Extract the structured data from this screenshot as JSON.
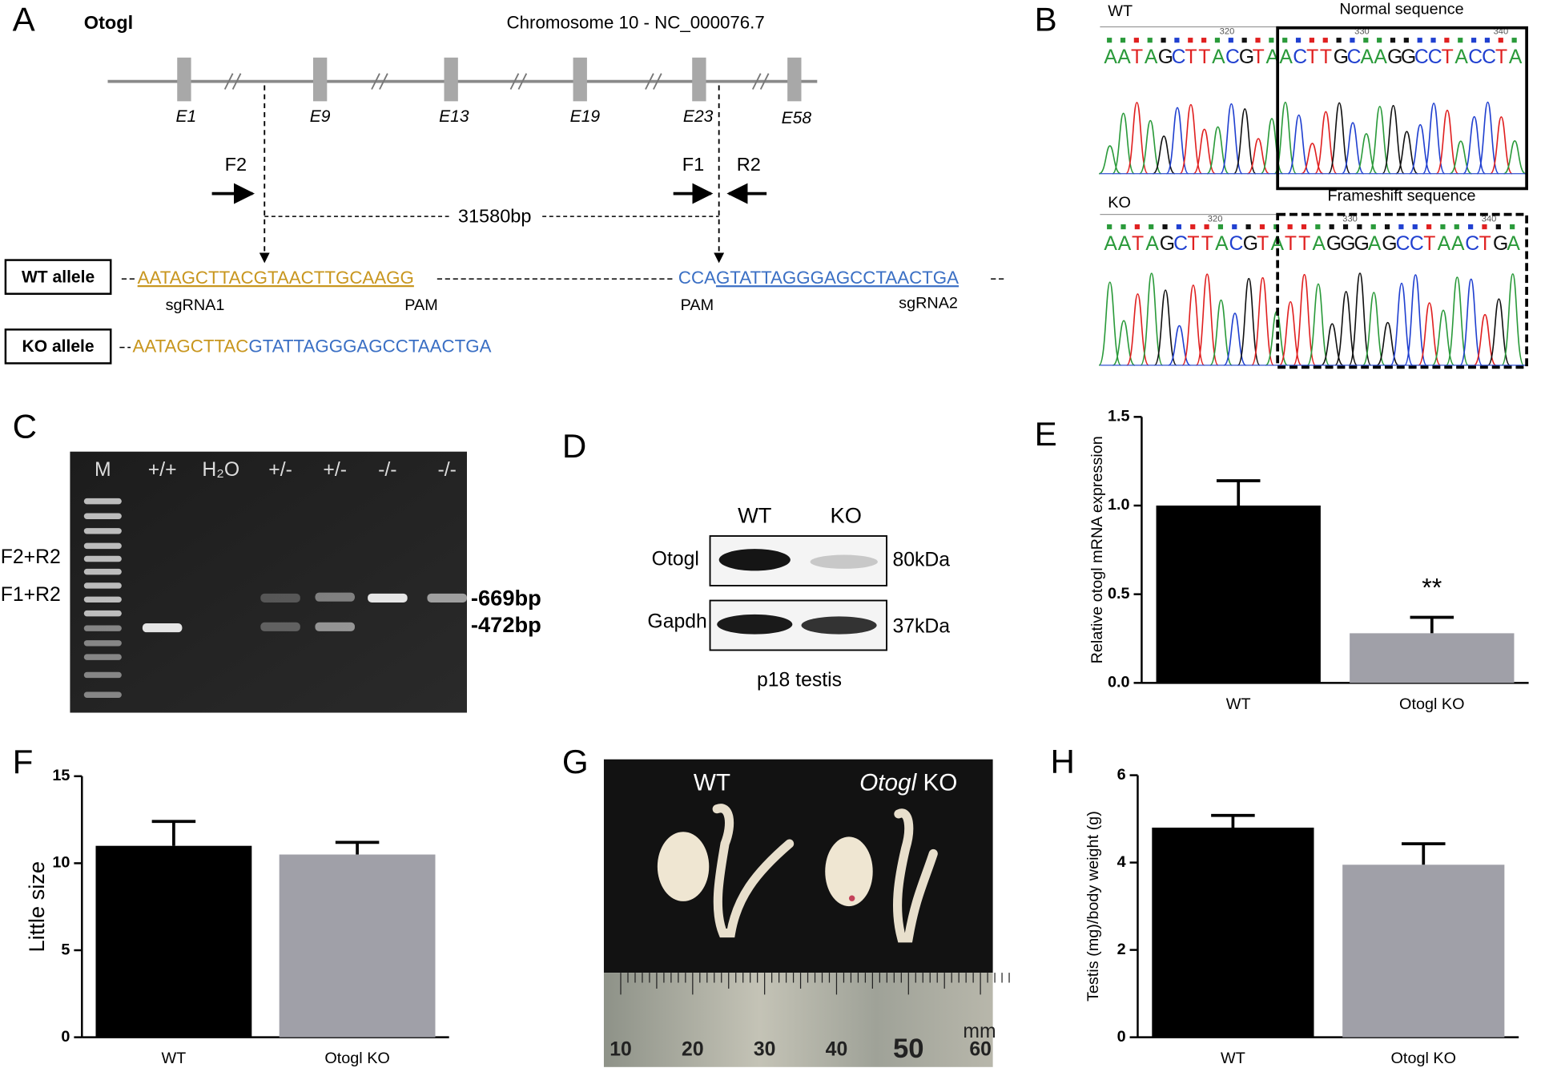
{
  "panel_labels": [
    "A",
    "B",
    "C",
    "D",
    "E",
    "F",
    "G",
    "H"
  ],
  "gene": {
    "name": "Otogl",
    "chromosome": "Chromosome 10 - NC_000076.7",
    "exons": [
      "E1",
      "E9",
      "E13",
      "E19",
      "E23",
      "E58"
    ],
    "primers": [
      "F2",
      "F1",
      "R2"
    ],
    "deletion": "31580bp",
    "wt_allele": {
      "label": "WT allele",
      "left": "AATAGCTTACGTAACTTGCAAGG",
      "pam_right": "CCA",
      "right": "GTATTAGGGAGCCTAACTGA",
      "notes": [
        "sgRNA1",
        "PAM",
        "PAM",
        "sgRNA2"
      ]
    },
    "ko_allele": {
      "label": "KO allele",
      "left": "AATAGCTTAC",
      "right": "GTATTAGGGAGCCTAACTGA"
    }
  },
  "sequencing": {
    "positions": [
      320,
      330,
      340
    ],
    "wt": {
      "label": "WT",
      "title": "Normal sequence",
      "sequence": "AATAGCTTACGTAACTTGCAAGGCCTACCTA"
    },
    "ko": {
      "label": "KO",
      "title": "Frameshift sequence",
      "sequence": "AATAGCTTACGTATTAGGGAGCCTAACTGA"
    }
  },
  "gel": {
    "lanes": [
      "M",
      "+/+",
      "H₂O",
      "+/-",
      "+/-",
      "-/-",
      "-/-"
    ],
    "products": [
      "F2+R2",
      "F1+R2"
    ],
    "sizes": [
      "-669bp",
      "-472bp"
    ]
  },
  "western": {
    "groups": [
      "WT",
      "KO"
    ],
    "proteins": [
      "Otogl",
      "Gapdh"
    ],
    "weights": [
      "80kDa",
      "37kDa"
    ],
    "sample": "p18 testis"
  },
  "photo": {
    "label": "WT",
    "ko_gene": "Otogl",
    "ko_suffix": "KO",
    "ruler": [
      10,
      20,
      30,
      40,
      50,
      60
    ],
    "unit": "mm"
  },
  "chart_data": [
    {
      "type": "bar",
      "y_label": "Relative otogl mRNA expression",
      "categories": [
        "WT",
        "Otogl KO"
      ],
      "values": [
        1.0,
        0.28
      ],
      "errors": [
        0.14,
        0.09
      ],
      "colors": [
        "#000000",
        "#a0a0a8"
      ],
      "annotation": "**",
      "ylim": [
        0,
        1.5
      ],
      "yticks": [
        {
          "value": 0,
          "label": "0.0"
        },
        {
          "value": 0.5,
          "label": "0.5"
        },
        {
          "value": 1,
          "label": "1.0"
        },
        {
          "value": 1.5,
          "label": "1.5"
        }
      ]
    },
    {
      "type": "bar",
      "y_label": "Little size",
      "categories": [
        "WT",
        "Otogl KO"
      ],
      "values": [
        11,
        10.5
      ],
      "errors": [
        1.4,
        0.7
      ],
      "colors": [
        "#000000",
        "#a0a0a8"
      ],
      "ylim": [
        0,
        15
      ],
      "yticks": [
        0,
        5,
        10,
        15
      ]
    },
    {
      "type": "bar",
      "y_label": "Testis (mg)/body weight (g)",
      "categories": [
        "WT",
        "Otogl KO"
      ],
      "values": [
        4.8,
        3.95
      ],
      "errors": [
        0.28,
        0.48
      ],
      "colors": [
        "#000000",
        "#a0a0a8"
      ],
      "ylim": [
        0,
        6
      ],
      "yticks": [
        0,
        2,
        4,
        6
      ]
    }
  ]
}
